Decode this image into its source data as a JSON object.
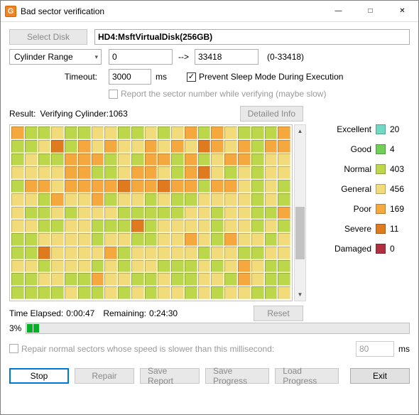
{
  "window": {
    "title": "Bad sector verification"
  },
  "controls": {
    "select_disk_label": "Select Disk",
    "disk_name": "HD4:MsftVirtualDisk(256GB)",
    "range_mode": "Cylinder Range",
    "range_start": "0",
    "range_arrow": "-->",
    "range_end": "33418",
    "range_hint": "(0-33418)",
    "timeout_label": "Timeout:",
    "timeout_value": "3000",
    "timeout_unit": "ms",
    "prevent_sleep_checked": true,
    "prevent_sleep_label": "Prevent Sleep Mode During Execution",
    "report_sector_checked": false,
    "report_sector_label": "Report the sector number while verifying (maybe slow)"
  },
  "result": {
    "label": "Result:",
    "status": "Verifying Cylinder:1063",
    "detailed_info": "Detailed Info"
  },
  "legend": {
    "colors": {
      "excellent": "#6fd9c4",
      "good": "#6fcf59",
      "normal": "#bcd84a",
      "general": "#f1db7a",
      "poor": "#f5a83e",
      "severe": "#e07a1f",
      "damaged": "#b03040"
    },
    "items": [
      {
        "name": "Excellent",
        "key": "excellent",
        "count": 20
      },
      {
        "name": "Good",
        "key": "good",
        "count": 4
      },
      {
        "name": "Normal",
        "key": "normal",
        "count": 403
      },
      {
        "name": "General",
        "key": "general",
        "count": 456
      },
      {
        "name": "Poor",
        "key": "poor",
        "count": 169
      },
      {
        "name": "Severe",
        "key": "severe",
        "count": 11
      },
      {
        "name": "Damaged",
        "key": "damaged",
        "count": 0
      }
    ]
  },
  "grid": {
    "cols": 21,
    "rows": 13,
    "pattern_rows": [
      "PGGYGGYYGGYGYPGPYGGGP",
      "GGYBGPYPYYPYPYSPYPGPP",
      "GYGGPPPGYGPPGPGYPPGYY",
      "YYYYPPGGYPPYGPSYGYGYY",
      "GPPYPPPPSPPSPPGPPYGYG",
      "YYGPYYPGYYGYGGYYYYGYG",
      "YGGYGYYYGGGGGYYGYYGGP",
      "YYGGYYGGGSGYYYYGYYGYG",
      "GGYYYYGYYGGYYPYGPYYGY",
      "GGSYYYYPGYYYYYGYYGGYY",
      "YYGYYYGYGYYGGGYGYPYGG",
      "GGYYGGPYYGGYGGYYGPYGG",
      "GGGGYGGYGYGYYGYGYYGGY"
    ],
    "code_to_key": {
      "E": "excellent",
      "D": "good",
      "G": "normal",
      "Y": "general",
      "P": "poor",
      "S": "severe",
      "B": "severe"
    },
    "scroll": {
      "thumb_top_pct": 40,
      "thumb_height_pct": 30
    }
  },
  "timer": {
    "elapsed_label": "Time Elapsed:",
    "elapsed": "0:00:47",
    "remaining_label": "Remaining:",
    "remaining": "0:24:30",
    "reset": "Reset",
    "progress_pct": 3,
    "progress_text": "3%"
  },
  "repair_opt": {
    "checked": false,
    "label": "Repair normal sectors whose speed is slower than this millisecond:",
    "value": "80",
    "unit": "ms"
  },
  "footer": {
    "stop": "Stop",
    "repair": "Repair",
    "save_report": "Save Report",
    "save_progress": "Save Progress",
    "load_progress": "Load Progress",
    "exit": "Exit"
  }
}
